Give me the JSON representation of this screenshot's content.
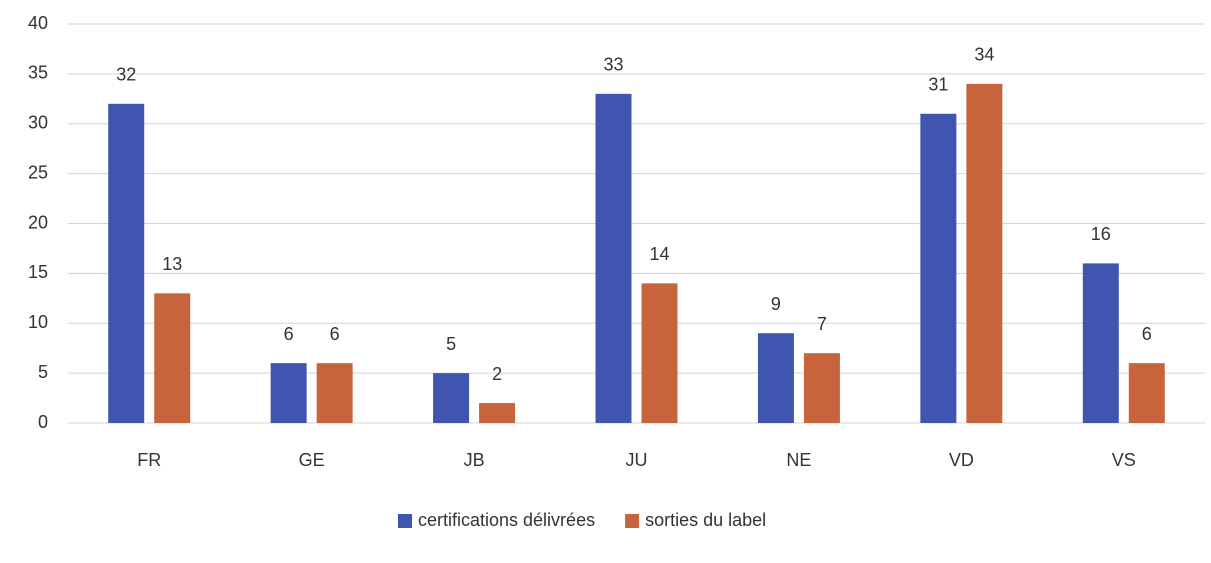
{
  "chart_data": {
    "type": "bar",
    "categories": [
      "FR",
      "GE",
      "JB",
      "JU",
      "NE",
      "VD",
      "VS"
    ],
    "series": [
      {
        "name": "certifications délivrées",
        "color": "#4055b0",
        "values": [
          32,
          6,
          5,
          33,
          9,
          31,
          16
        ]
      },
      {
        "name": "sorties du label",
        "color": "#c8643c",
        "values": [
          13,
          6,
          2,
          14,
          7,
          34,
          6
        ]
      }
    ],
    "ylim": [
      0,
      40
    ],
    "yticks": [
      0,
      5,
      10,
      15,
      20,
      25,
      30,
      35,
      40
    ],
    "grid": true,
    "legend": "bottom"
  }
}
